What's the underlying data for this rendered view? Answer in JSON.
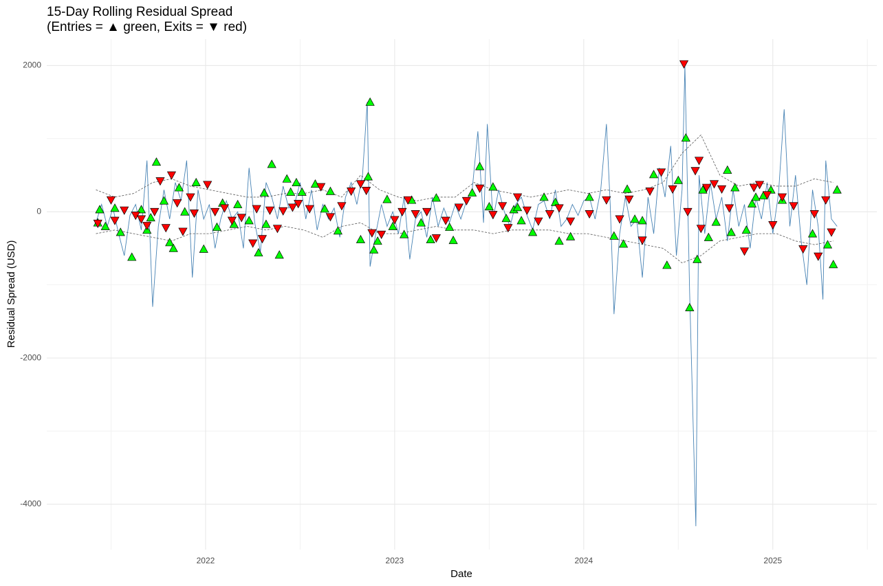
{
  "chart_data": {
    "type": "line",
    "title": "15-Day Rolling Residual Spread",
    "subtitle": "(Entries = ▲ green, Exits = ▼ red)",
    "x_label": "Date",
    "y_label": "Residual Spread (USD)",
    "xlim": [
      2021.16,
      2025.55
    ],
    "xticks": [
      2022,
      2023,
      2024,
      2025
    ],
    "ylim": [
      -4620,
      2360
    ],
    "yticks": [
      2000,
      0,
      -2000,
      -4000
    ],
    "grid": true,
    "series": [
      {
        "color": "#4682b4",
        "x": [
          2021.42,
          2021.45,
          2021.48,
          2021.51,
          2021.54,
          2021.57,
          2021.6,
          2021.63,
          2021.66,
          2021.69,
          2021.72,
          2021.75,
          2021.78,
          2021.81,
          2021.84,
          2021.87,
          2021.9,
          2021.93,
          2021.96,
          2021.99,
          2022.02,
          2022.05,
          2022.08,
          2022.11,
          2022.14,
          2022.17,
          2022.2,
          2022.23,
          2022.26,
          2022.29,
          2022.32,
          2022.35,
          2022.38,
          2022.41,
          2022.44,
          2022.47,
          2022.5,
          2022.53,
          2022.56,
          2022.59,
          2022.62,
          2022.65,
          2022.68,
          2022.71,
          2022.74,
          2022.77,
          2022.8,
          2022.83,
          2022.855,
          2022.87,
          2022.9,
          2022.93,
          2022.96,
          2022.99,
          2023.02,
          2023.05,
          2023.08,
          2023.11,
          2023.14,
          2023.17,
          2023.2,
          2023.23,
          2023.26,
          2023.29,
          2023.32,
          2023.35,
          2023.38,
          2023.41,
          2023.44,
          2023.47,
          2023.49,
          2023.52,
          2023.55,
          2023.58,
          2023.61,
          2023.64,
          2023.67,
          2023.7,
          2023.73,
          2023.76,
          2023.79,
          2023.82,
          2023.85,
          2023.88,
          2023.91,
          2023.94,
          2023.97,
          2024,
          2024.03,
          2024.06,
          2024.09,
          2024.12,
          2024.14,
          2024.16,
          2024.19,
          2024.22,
          2024.25,
          2024.28,
          2024.31,
          2024.34,
          2024.37,
          2024.4,
          2024.43,
          2024.46,
          2024.49,
          2024.52,
          2024.535,
          2024.56,
          2024.593,
          2024.61,
          2024.64,
          2024.67,
          2024.7,
          2024.73,
          2024.76,
          2024.79,
          2024.82,
          2024.85,
          2024.88,
          2024.91,
          2024.94,
          2024.97,
          2025,
          2025.03,
          2025.06,
          2025.09,
          2025.12,
          2025.15,
          2025.18,
          2025.21,
          2025.24,
          2025.265,
          2025.28,
          2025.31,
          2025.34
        ],
        "values": [
          -150,
          100,
          -200,
          50,
          -300,
          -600,
          -50,
          100,
          -250,
          700,
          -1300,
          -200,
          300,
          -100,
          400,
          150,
          700,
          -900,
          300,
          -100,
          100,
          -500,
          -100,
          150,
          -100,
          0,
          -500,
          600,
          -150,
          -550,
          400,
          200,
          -100,
          350,
          50,
          100,
          400,
          -100,
          300,
          -250,
          100,
          -100,
          50,
          -350,
          200,
          400,
          100,
          500,
          1500,
          -750,
          -300,
          100,
          -200,
          0,
          -300,
          200,
          -650,
          -100,
          0,
          -350,
          200,
          -200,
          50,
          -150,
          100,
          -100,
          150,
          300,
          1100,
          -150,
          1200,
          -100,
          300,
          0,
          -200,
          100,
          200,
          -50,
          -250,
          100,
          150,
          -100,
          300,
          -200,
          -100,
          100,
          -50,
          150,
          200,
          -100,
          300,
          1200,
          100,
          -1400,
          -300,
          200,
          -200,
          -100,
          -900,
          200,
          -300,
          600,
          200,
          900,
          -600,
          300,
          2000,
          -1100,
          -4300,
          500,
          -300,
          400,
          -100,
          200,
          -400,
          300,
          -200,
          100,
          -500,
          200,
          -100,
          400,
          -300,
          250,
          1400,
          -200,
          500,
          -400,
          -1000,
          300,
          -200,
          -1200,
          700,
          -100,
          -200
        ]
      },
      {
        "color": "#555555",
        "dash": true,
        "x": [
          2021.42,
          2021.52,
          2021.62,
          2021.72,
          2021.82,
          2021.92,
          2022.02,
          2022.12,
          2022.22,
          2022.32,
          2022.42,
          2022.52,
          2022.62,
          2022.72,
          2022.82,
          2022.92,
          2023.02,
          2023.12,
          2023.22,
          2023.32,
          2023.42,
          2023.52,
          2023.62,
          2023.72,
          2023.82,
          2023.92,
          2024.02,
          2024.12,
          2024.22,
          2024.32,
          2024.42,
          2024.52,
          2024.62,
          2024.72,
          2024.82,
          2024.92,
          2025.02,
          2025.12,
          2025.22,
          2025.32
        ],
        "values": [
          300,
          200,
          250,
          400,
          450,
          350,
          300,
          250,
          200,
          200,
          250,
          250,
          300,
          200,
          500,
          300,
          200,
          150,
          200,
          200,
          400,
          300,
          250,
          200,
          250,
          300,
          250,
          300,
          250,
          300,
          400,
          800,
          1050,
          500,
          350,
          400,
          350,
          350,
          450,
          400
        ]
      },
      {
        "color": "#555555",
        "dash": true,
        "x": [
          2021.42,
          2021.52,
          2021.62,
          2021.72,
          2021.82,
          2021.92,
          2022.02,
          2022.12,
          2022.22,
          2022.32,
          2022.42,
          2022.52,
          2022.62,
          2022.72,
          2022.82,
          2022.92,
          2023.02,
          2023.12,
          2023.22,
          2023.32,
          2023.42,
          2023.52,
          2023.62,
          2023.72,
          2023.82,
          2023.92,
          2024.02,
          2024.12,
          2024.22,
          2024.32,
          2024.42,
          2024.52,
          2024.62,
          2024.72,
          2024.82,
          2024.92,
          2025.02,
          2025.12,
          2025.22,
          2025.32
        ],
        "values": [
          -300,
          -250,
          -300,
          -350,
          -400,
          -300,
          -300,
          -250,
          -200,
          -250,
          -200,
          -250,
          -350,
          -200,
          -150,
          -300,
          -300,
          -250,
          -200,
          -250,
          -250,
          -300,
          -250,
          -250,
          -250,
          -300,
          -300,
          -350,
          -400,
          -450,
          -500,
          -700,
          -600,
          -400,
          -350,
          -300,
          -300,
          -400,
          -450,
          -400
        ]
      },
      {
        "color": "#00ff00",
        "marker": "triangle-up",
        "x": [
          2021.43,
          2021.44,
          2021.47,
          2021.52,
          2021.55,
          2021.61,
          2021.66,
          2021.69,
          2021.71,
          2021.74,
          2021.78,
          2021.81,
          2021.83,
          2021.86,
          2021.89,
          2021.95,
          2021.99,
          2022.06,
          2022.09,
          2022.15,
          2022.17,
          2022.23,
          2022.28,
          2022.31,
          2022.32,
          2022.35,
          2022.39,
          2022.43,
          2022.45,
          2022.48,
          2022.51,
          2022.58,
          2022.63,
          2022.66,
          2022.7,
          2022.82,
          2022.86,
          2022.87,
          2022.89,
          2022.91,
          2022.96,
          2022.99,
          2023.05,
          2023.09,
          2023.14,
          2023.19,
          2023.22,
          2023.29,
          2023.31,
          2023.41,
          2023.45,
          2023.5,
          2023.52,
          2023.59,
          2023.63,
          2023.65,
          2023.67,
          2023.73,
          2023.79,
          2023.85,
          2023.87,
          2023.93,
          2024.03,
          2024.16,
          2024.21,
          2024.23,
          2024.27,
          2024.31,
          2024.37,
          2024.44,
          2024.5,
          2024.54,
          2024.56,
          2024.6,
          2024.63,
          2024.66,
          2024.7,
          2024.76,
          2024.78,
          2024.8,
          2024.86,
          2024.89,
          2024.91,
          2024.95,
          2024.99,
          2025.05,
          2025.21,
          2025.29,
          2025.32,
          2025.34
        ],
        "values": [
          -150,
          30,
          -200,
          50,
          -280,
          -620,
          30,
          -250,
          -80,
          680,
          150,
          -420,
          -500,
          330,
          0,
          400,
          -510,
          -210,
          120,
          -170,
          100,
          -120,
          -560,
          260,
          -170,
          650,
          -590,
          450,
          270,
          400,
          270,
          380,
          40,
          280,
          -260,
          -380,
          480,
          1500,
          -520,
          -400,
          170,
          -200,
          -310,
          160,
          -150,
          -380,
          190,
          -210,
          -390,
          260,
          620,
          70,
          340,
          -90,
          30,
          60,
          -120,
          -280,
          200,
          130,
          -400,
          -340,
          200,
          -330,
          -440,
          310,
          -100,
          -120,
          510,
          -730,
          430,
          1010,
          -1310,
          -650,
          300,
          -350,
          -140,
          570,
          -280,
          330,
          -250,
          110,
          200,
          220,
          300,
          160,
          -300,
          -450,
          -720,
          300
        ]
      },
      {
        "color": "#ff0000",
        "marker": "triangle-down",
        "x": [
          2021.43,
          2021.5,
          2021.52,
          2021.57,
          2021.63,
          2021.66,
          2021.69,
          2021.73,
          2021.76,
          2021.79,
          2021.82,
          2021.85,
          2021.88,
          2021.92,
          2021.94,
          2022.01,
          2022.05,
          2022.1,
          2022.14,
          2022.19,
          2022.25,
          2022.27,
          2022.3,
          2022.34,
          2022.38,
          2022.41,
          2022.46,
          2022.49,
          2022.55,
          2022.61,
          2022.66,
          2022.72,
          2022.77,
          2022.82,
          2022.85,
          2022.88,
          2022.93,
          2023,
          2023.04,
          2023.07,
          2023.11,
          2023.17,
          2023.22,
          2023.27,
          2023.34,
          2023.38,
          2023.45,
          2023.52,
          2023.57,
          2023.6,
          2023.65,
          2023.7,
          2023.76,
          2023.82,
          2023.87,
          2023.93,
          2024.03,
          2024.12,
          2024.19,
          2024.24,
          2024.31,
          2024.35,
          2024.41,
          2024.47,
          2024.53,
          2024.55,
          2024.59,
          2024.61,
          2024.62,
          2024.65,
          2024.69,
          2024.73,
          2024.77,
          2024.85,
          2024.9,
          2024.93,
          2024.97,
          2025,
          2025.05,
          2025.11,
          2025.16,
          2025.22,
          2025.24,
          2025.28,
          2025.31
        ],
        "values": [
          -160,
          160,
          -120,
          20,
          -50,
          -100,
          -190,
          0,
          420,
          -220,
          500,
          120,
          -270,
          200,
          -20,
          370,
          0,
          50,
          -120,
          -80,
          -430,
          40,
          -370,
          20,
          -230,
          10,
          60,
          110,
          40,
          340,
          -70,
          80,
          280,
          380,
          290,
          -290,
          -310,
          -110,
          0,
          160,
          -30,
          0,
          -360,
          -120,
          60,
          150,
          320,
          -40,
          80,
          -220,
          200,
          20,
          -130,
          -30,
          50,
          -130,
          -30,
          160,
          -100,
          170,
          -390,
          280,
          540,
          310,
          2020,
          0,
          560,
          700,
          -230,
          330,
          380,
          310,
          50,
          -540,
          330,
          370,
          230,
          -180,
          200,
          80,
          -510,
          -30,
          -610,
          160,
          -280
        ]
      }
    ]
  }
}
